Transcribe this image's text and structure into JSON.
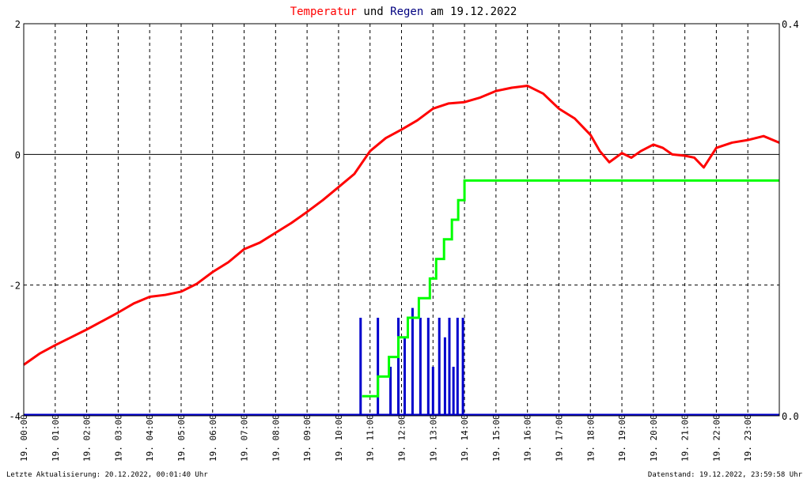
{
  "title": {
    "part1": "Temperatur",
    "part2": " und ",
    "part3": "Regen",
    "part4": " am 19.12.2022",
    "color1": "#ff0000",
    "color2": "#000000",
    "color3": "#000080",
    "color4": "#000000"
  },
  "footer": {
    "left": "Letzte Aktualisierung: 20.12.2022, 00:01:40 Uhr",
    "right": "Datenstand: 19.12.2022, 23:59:58 Uhr"
  },
  "chart_data": {
    "type": "line",
    "x_unit": "hour",
    "xlim": [
      0,
      24
    ],
    "ylim_left": [
      -4,
      2
    ],
    "ylim_right": [
      0.0,
      0.4
    ],
    "left_ticks": [
      "2",
      "0",
      "-2",
      "-4"
    ],
    "right_ticks": [
      "0.4",
      "0.0"
    ],
    "x_tick_labels": [
      "19. 00:00",
      "19. 01:00",
      "19. 02:00",
      "19. 03:00",
      "19. 04:00",
      "19. 05:00",
      "19. 06:00",
      "19. 07:00",
      "19. 08:00",
      "19. 09:00",
      "19. 10:00",
      "19. 11:00",
      "19. 12:00",
      "19. 13:00",
      "19. 14:00",
      "19. 15:00",
      "19. 16:00",
      "19. 17:00",
      "19. 18:00",
      "19. 19:00",
      "19. 20:00",
      "19. 21:00",
      "19. 22:00",
      "19. 23:00"
    ],
    "grid": true,
    "colors": {
      "temperature": "#ff0000",
      "rain_cumulative": "#00ff00",
      "rain_interval": "#0000cc",
      "grid": "#000000",
      "zero_line": "#000000"
    },
    "series": [
      {
        "key": "temperature",
        "axis": "left",
        "x": [
          0,
          0.5,
          1,
          1.5,
          2,
          2.5,
          3,
          3.5,
          4,
          4.5,
          5,
          5.5,
          6,
          6.5,
          7,
          7.5,
          8,
          8.5,
          9,
          9.5,
          10,
          10.5,
          11,
          11.5,
          12,
          12.5,
          13,
          13.5,
          14,
          14.5,
          15,
          15.5,
          16,
          16.5,
          17,
          17.5,
          18,
          18.3,
          18.6,
          19,
          19.3,
          19.6,
          20,
          20.3,
          20.6,
          21,
          21.3,
          21.6,
          22,
          22.5,
          23,
          23.5,
          24
        ],
        "y": [
          -3.22,
          -3.05,
          -2.92,
          -2.8,
          -2.68,
          -2.55,
          -2.42,
          -2.28,
          -2.18,
          -2.15,
          -2.1,
          -1.98,
          -1.8,
          -1.65,
          -1.45,
          -1.35,
          -1.2,
          -1.05,
          -0.88,
          -0.7,
          -0.5,
          -0.3,
          0.05,
          0.25,
          0.38,
          0.52,
          0.7,
          0.78,
          0.8,
          0.87,
          0.97,
          1.02,
          1.05,
          0.93,
          0.7,
          0.55,
          0.3,
          0.05,
          -0.12,
          0.02,
          -0.05,
          0.05,
          0.15,
          0.1,
          0.0,
          -0.02,
          -0.05,
          -0.2,
          0.1,
          0.18,
          0.22,
          0.28,
          0.18
        ]
      },
      {
        "key": "rain_cumulative",
        "axis": "right",
        "x": [
          10.75,
          11.25,
          11.6,
          11.9,
          12.2,
          12.55,
          12.9,
          13.1,
          13.35,
          13.6,
          13.8,
          14,
          24
        ],
        "y": [
          0.02,
          0.04,
          0.06,
          0.08,
          0.1,
          0.12,
          0.14,
          0.16,
          0.18,
          0.2,
          0.22,
          0.24,
          0.24
        ]
      },
      {
        "key": "rain_interval",
        "axis": "right",
        "x": [
          10.7,
          11.25,
          11.65,
          11.9,
          12.1,
          12.35,
          12.6,
          12.85,
          13.0,
          13.2,
          13.38,
          13.52,
          13.65,
          13.78,
          13.95
        ],
        "y": [
          0.1,
          0.1,
          0.05,
          0.1,
          0.08,
          0.11,
          0.1,
          0.1,
          0.05,
          0.1,
          0.08,
          0.1,
          0.05,
          0.1,
          0.1
        ]
      }
    ]
  }
}
